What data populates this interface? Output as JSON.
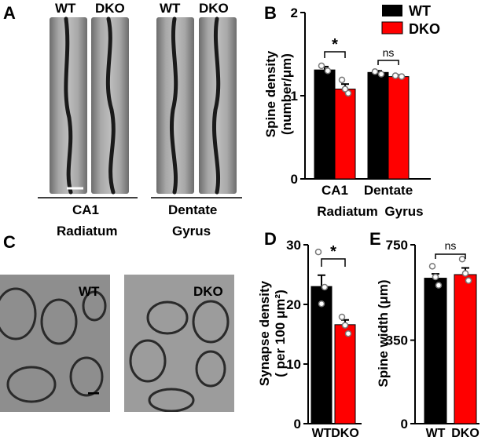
{
  "panels": {
    "a": {
      "letter": "A",
      "strip_labels": [
        "WT",
        "DKO",
        "WT",
        "DKO"
      ],
      "region1_line1": "CA1",
      "region1_line2": "Radiatum",
      "region2_line1": "Dentate",
      "region2_line2": "Gyrus"
    },
    "b": {
      "letter": "B"
    },
    "c": {
      "letter": "C",
      "label_wt": "WT",
      "label_dko": "DKO"
    },
    "d": {
      "letter": "D"
    },
    "e": {
      "letter": "E"
    }
  },
  "colors": {
    "wt": "#000000",
    "dko": "#ff0000"
  },
  "chart_data": [
    {
      "id": "B",
      "type": "bar",
      "ylabel_lines": [
        "Spine density",
        "(number/μm)"
      ],
      "ylim": [
        0,
        2
      ],
      "yticks": [
        0,
        1,
        2
      ],
      "categories": [
        "CA1",
        "Dentate"
      ],
      "category_sublabels": [
        "Radiatum",
        "Gyrus"
      ],
      "legend": {
        "position": "top-right",
        "entries": [
          "WT",
          "DKO"
        ]
      },
      "series": [
        {
          "name": "WT",
          "values": [
            1.31,
            1.28
          ],
          "errors": [
            0.04,
            0.02
          ]
        },
        {
          "name": "DKO",
          "values": [
            1.08,
            1.23
          ],
          "errors": [
            0.06,
            0.02
          ]
        }
      ],
      "points": {
        "WT": [
          [
            1.36,
            1.3
          ],
          [
            1.29,
            1.26
          ]
        ],
        "DKO": [
          [
            1.19,
            1.03,
            1.08
          ],
          [
            1.24,
            1.23
          ]
        ]
      },
      "significance": [
        "*",
        "ns"
      ]
    },
    {
      "id": "D",
      "type": "bar",
      "ylabel_lines": [
        "Synapse density",
        "( per 100 μm²)"
      ],
      "ylim": [
        0,
        30
      ],
      "yticks": [
        0,
        10,
        20,
        30
      ],
      "categories": [
        "WT",
        "DKO"
      ],
      "values": [
        23.0,
        16.6
      ],
      "errors": [
        1.9,
        0.8
      ],
      "points": [
        [
          28.8,
          22.9,
          20.1
        ],
        [
          17.9,
          15.1,
          16.5
        ]
      ],
      "significance": "*"
    },
    {
      "id": "E",
      "type": "bar",
      "ylabel": "Spine width (μm)",
      "ylim": [
        0,
        750
      ],
      "yticks": [
        0,
        350,
        750
      ],
      "categories": [
        "WT",
        "DKO"
      ],
      "values": [
        610,
        625
      ],
      "errors": [
        18,
        28
      ],
      "points": [
        [
          660,
          580,
          615
        ],
        [
          690,
          600,
          630
        ]
      ],
      "significance": "ns"
    }
  ]
}
